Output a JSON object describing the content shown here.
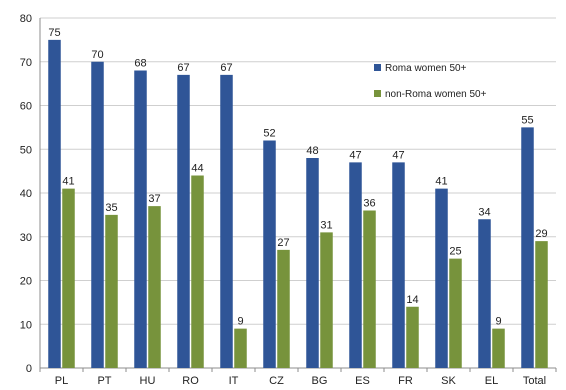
{
  "chart_data": {
    "type": "bar",
    "title": "",
    "xlabel": "",
    "ylabel": "",
    "ylim": [
      0,
      80
    ],
    "yticks": [
      0,
      10,
      20,
      30,
      40,
      50,
      60,
      70,
      80
    ],
    "grid": true,
    "legend_position": "top-right",
    "categories": [
      "PL",
      "PT",
      "HU",
      "RO",
      "IT",
      "CZ",
      "BG",
      "ES",
      "FR",
      "SK",
      "EL",
      "Total"
    ],
    "series": [
      {
        "name": "Roma women 50+",
        "color": "#2f5597",
        "values": [
          75,
          70,
          68,
          67,
          67,
          52,
          48,
          47,
          47,
          41,
          34,
          55
        ]
      },
      {
        "name": "non-Roma women 50+",
        "color": "#77933c",
        "values": [
          41,
          35,
          37,
          44,
          9,
          27,
          31,
          36,
          14,
          25,
          9,
          29
        ]
      }
    ]
  }
}
